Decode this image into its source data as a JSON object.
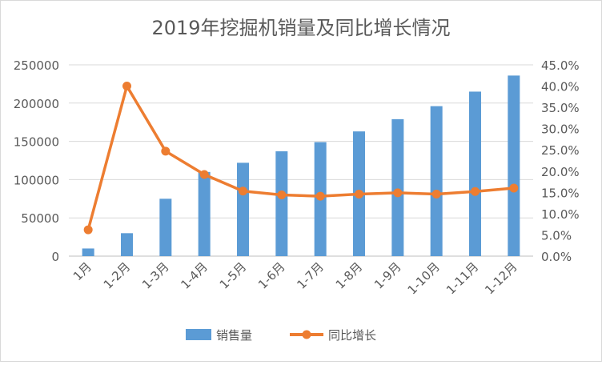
{
  "chart_data": {
    "type": "bar",
    "title": "2019年挖掘机销量及同比增长情况",
    "categories": [
      "1月",
      "1-2月",
      "1-3月",
      "1-4月",
      "1-5月",
      "1-6月",
      "1-7月",
      "1-8月",
      "1-9月",
      "1-10月",
      "1-11月",
      "1-12月"
    ],
    "series": [
      {
        "name": "销售量",
        "kind": "bar",
        "axis": "left",
        "color": "#5B9BD5",
        "values": [
          10000,
          30000,
          75000,
          110000,
          122000,
          137000,
          149000,
          163000,
          179000,
          196000,
          215000,
          236000
        ]
      },
      {
        "name": "同比增长",
        "kind": "line",
        "axis": "right",
        "color": "#ED7D31",
        "values": [
          6.2,
          40.0,
          24.7,
          19.2,
          15.3,
          14.4,
          14.1,
          14.6,
          14.9,
          14.6,
          15.2,
          16.0
        ]
      }
    ],
    "y_left": {
      "ylim": [
        0,
        250000
      ],
      "ticks": [
        0,
        50000,
        100000,
        150000,
        200000,
        250000
      ],
      "tick_labels": [
        "0",
        "50000",
        "100000",
        "150000",
        "200000",
        "250000"
      ]
    },
    "y_right": {
      "ylim": [
        0,
        45
      ],
      "ticks": [
        0,
        5,
        10,
        15,
        20,
        25,
        30,
        35,
        40,
        45
      ],
      "tick_labels": [
        "0.0%",
        "5.0%",
        "10.0%",
        "15.0%",
        "20.0%",
        "25.0%",
        "30.0%",
        "35.0%",
        "40.0%",
        "45.0%"
      ]
    },
    "grid": true,
    "legend_position": "bottom"
  }
}
